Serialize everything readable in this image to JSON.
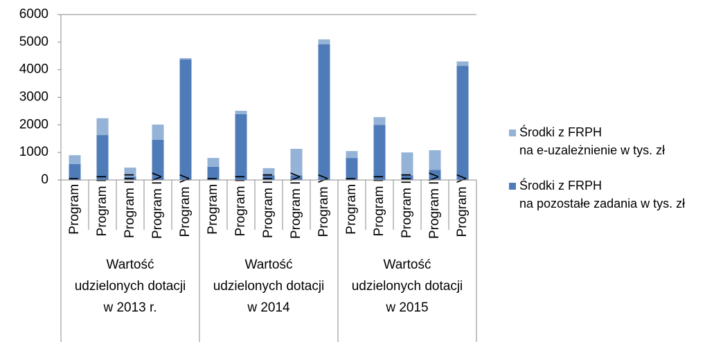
{
  "chart_data": {
    "type": "stacked_bar",
    "categories": [
      "Program I",
      "Program II",
      "Program III",
      "Program IV",
      "Program V",
      "Program I",
      "Program II",
      "Program III",
      "Program IV",
      "Program V",
      "Program I",
      "Program II",
      "Program III",
      "Program IV",
      "Program V"
    ],
    "groups": [
      "Wartość\nudzielonych dotacji\nw 2013 r.",
      "Wartość\nudzielonych dotacji\nw 2014",
      "Wartość\nudzielonych dotacji\nw 2015"
    ],
    "series": [
      {
        "name": "Środki z FRPH\nna e-uzależnienie w tys. zł",
        "color": "#95b3d7",
        "values": [
          320,
          610,
          330,
          550,
          50,
          320,
          120,
          260,
          960,
          180,
          250,
          280,
          830,
          710,
          160
        ]
      },
      {
        "name": "Środki z FRPH\nna pozostałe zadania w tys. zł",
        "color": "#4f7cb8",
        "values": [
          580,
          1630,
          120,
          1460,
          4370,
          480,
          2390,
          170,
          170,
          4920,
          800,
          2000,
          170,
          370,
          4140
        ]
      }
    ],
    "ylim": [
      0,
      6000
    ],
    "yticks": [
      0,
      1000,
      2000,
      3000,
      4000,
      5000,
      6000
    ],
    "grid": false,
    "legend": "right"
  }
}
